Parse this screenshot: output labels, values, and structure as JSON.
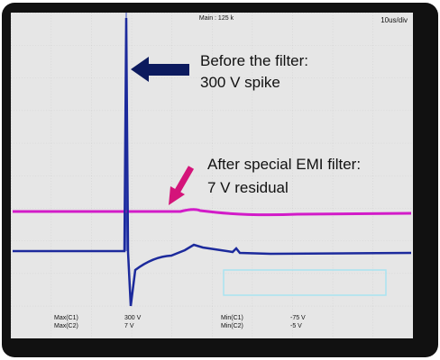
{
  "header": {
    "main": "Main : 125 k",
    "timebase": "10us/div"
  },
  "annotations": [
    {
      "line1": "Before the filter:",
      "line2": "300 V spike"
    },
    {
      "line1": "After special EMI filter:",
      "line2": "7 V residual"
    }
  ],
  "measurements": [
    [
      "Max(C1)",
      "300 V",
      "Min(C1)",
      "-75 V"
    ],
    [
      "Max(C2)",
      "7 V",
      "Min(C2)",
      "-5 V"
    ]
  ]
}
